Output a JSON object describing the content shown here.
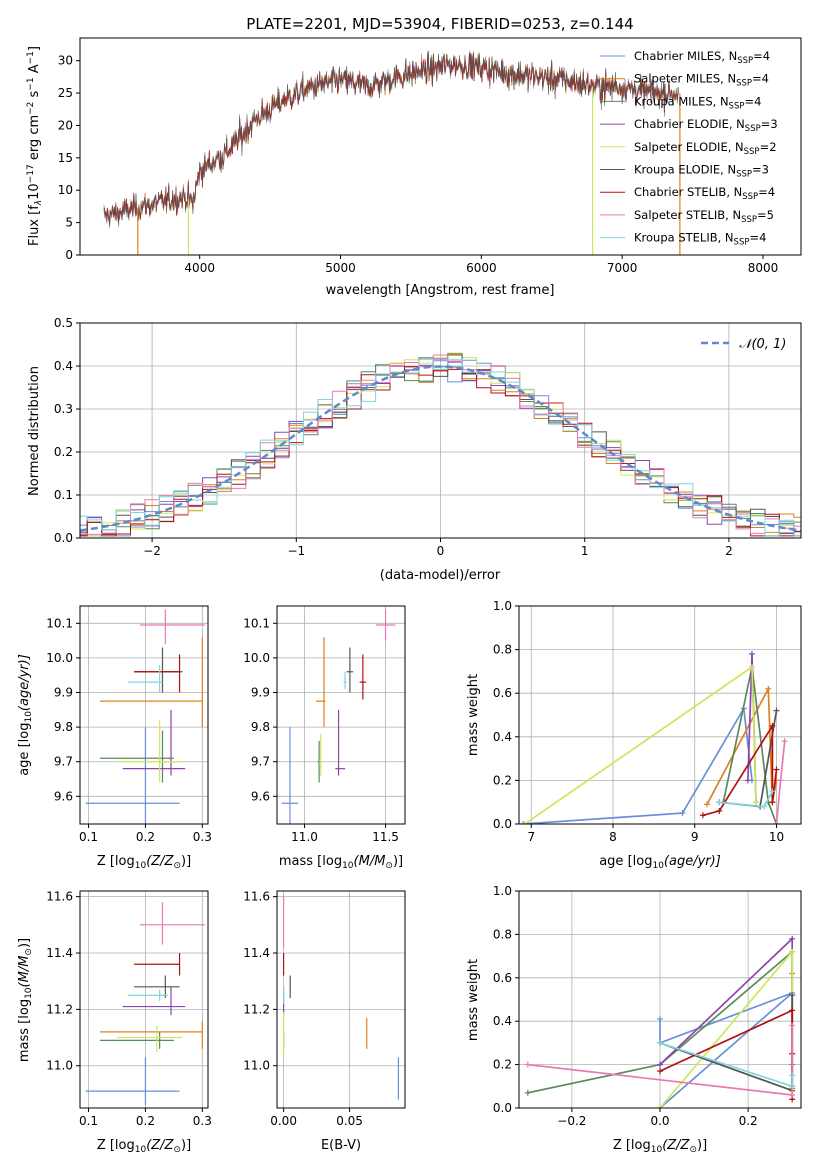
{
  "colors": [
    "#6a8fd8",
    "#e0801e",
    "#5a8a5a",
    "#8e44ad",
    "#cde65c",
    "#555555",
    "#b01010",
    "#e87ab3",
    "#7fd6df"
  ],
  "chart_data": [
    {
      "id": "spectrum",
      "type": "line",
      "title": "PLATE=2201, MJD=53904, FIBERID=0253, z=0.144",
      "xlabel": "wavelength [Angstrom, rest frame]",
      "ylabel": "Flux [f",
      "ylabel_sub": "λ",
      "ylabel_rest": "10",
      "ylabel_exp": "−17",
      "ylabel_units": " erg cm",
      "xlim": [
        3150,
        8270
      ],
      "ylim": [
        0,
        33.5
      ],
      "xticks": [
        4000,
        5000,
        6000,
        7000,
        8000
      ],
      "yticks": [
        0,
        5,
        10,
        15,
        20,
        25,
        30
      ],
      "legend_loc": "upper right",
      "series": [
        {
          "name": "Chabrier MILES, N",
          "sub": "SSP",
          "suffix": "=4"
        },
        {
          "name": "Salpeter MILES, N",
          "sub": "SSP",
          "suffix": "=4"
        },
        {
          "name": "Kroupa MILES, N",
          "sub": "SSP",
          "suffix": "=4"
        },
        {
          "name": "Chabrier ELODIE, N",
          "sub": "SSP",
          "suffix": "=3"
        },
        {
          "name": "Salpeter ELODIE, N",
          "sub": "SSP",
          "suffix": "=2"
        },
        {
          "name": "Kroupa ELODIE, N",
          "sub": "SSP",
          "suffix": "=3"
        },
        {
          "name": "Chabrier STELIB, N",
          "sub": "SSP",
          "suffix": "=4"
        },
        {
          "name": "Salpeter STELIB, N",
          "sub": "SSP",
          "suffix": "=5"
        },
        {
          "name": "Kroupa STELIB, N",
          "sub": "SSP",
          "suffix": "=4"
        }
      ],
      "continuum": [
        [
          3320,
          6
        ],
        [
          3500,
          7
        ],
        [
          3700,
          8
        ],
        [
          3900,
          9
        ],
        [
          3950,
          8
        ],
        [
          4000,
          13
        ],
        [
          4200,
          16
        ],
        [
          4400,
          21
        ],
        [
          4600,
          24
        ],
        [
          4800,
          26
        ],
        [
          5000,
          27
        ],
        [
          5200,
          26
        ],
        [
          5400,
          27.5
        ],
        [
          5600,
          28.5
        ],
        [
          5800,
          29.5
        ],
        [
          6000,
          29
        ],
        [
          6200,
          28
        ],
        [
          6400,
          27.5
        ],
        [
          6600,
          27
        ],
        [
          6800,
          26
        ],
        [
          7000,
          26
        ],
        [
          7200,
          25
        ],
        [
          7400,
          25
        ]
      ],
      "cutoffs": [
        [
          3560,
          "#e0801e"
        ],
        [
          3920,
          "#cde65c"
        ],
        [
          6790,
          "#cde65c"
        ],
        [
          7410,
          "#e0801e"
        ]
      ]
    },
    {
      "id": "residuals",
      "type": "histogram",
      "xlabel": "(data-model)/error",
      "ylabel": "Normed distribution",
      "xlim": [
        -2.5,
        2.5
      ],
      "ylim": [
        0,
        0.5
      ],
      "xticks": [
        -2,
        -1,
        0,
        1,
        2
      ],
      "yticks": [
        0.0,
        0.1,
        0.2,
        0.3,
        0.4,
        0.5
      ],
      "legend": "𝒩(0, 1)",
      "legend_loc": "upper right",
      "bin_width": 0.1
    },
    {
      "id": "age-vs-Z",
      "type": "errorbar",
      "xlabel": "Z [log",
      "xlabel_sub": "10",
      "xlabel_rest": "(Z/Z",
      "ylabel": "age  [log",
      "ylabel_sub": "10",
      "ylabel_rest": "(age/yr)]",
      "xlim": [
        0.085,
        0.31
      ],
      "ylim": [
        9.52,
        10.15
      ],
      "xticks": [
        0.1,
        0.2,
        0.3
      ],
      "yticks": [
        9.6,
        9.7,
        9.8,
        9.9,
        10.0,
        10.1
      ],
      "points": [
        {
          "x": 0.2,
          "y": 9.58,
          "xerr": [
            0.095,
            0.26
          ],
          "yerr": [
            9.52,
            9.8
          ]
        },
        {
          "x": 0.3,
          "y": 9.875,
          "xerr": [
            0.12,
            0.3
          ],
          "yerr": [
            9.8,
            10.06
          ]
        },
        {
          "x": 0.23,
          "y": 9.71,
          "xerr": [
            0.12,
            0.25
          ],
          "yerr": [
            9.64,
            9.79
          ]
        },
        {
          "x": 0.245,
          "y": 9.68,
          "xerr": [
            0.16,
            0.27
          ],
          "yerr": [
            9.66,
            9.85
          ]
        },
        {
          "x": 0.225,
          "y": 9.7,
          "xerr": [
            0.15,
            0.265
          ],
          "yerr": [
            9.64,
            9.82
          ]
        },
        {
          "x": 0.23,
          "y": 9.96,
          "xerr": [
            0.18,
            0.265
          ],
          "yerr": [
            9.9,
            10.03
          ]
        },
        {
          "x": 0.26,
          "y": 9.96,
          "xerr": [
            0.18,
            0.26
          ],
          "yerr": [
            9.9,
            10.01
          ]
        },
        {
          "x": 0.235,
          "y": 10.095,
          "xerr": [
            0.19,
            0.305
          ],
          "yerr": [
            10.04,
            10.14
          ]
        },
        {
          "x": 0.225,
          "y": 9.93,
          "xerr": [
            0.17,
            0.23
          ],
          "yerr": [
            9.9,
            9.98
          ]
        }
      ]
    },
    {
      "id": "age-vs-mass",
      "type": "errorbar",
      "xlabel": "mass [log",
      "xlabel_sub": "10",
      "xlabel_rest": "(M/M",
      "xlim": [
        10.83,
        11.62
      ],
      "ylim": [
        9.52,
        10.15
      ],
      "xticks": [
        11.0,
        11.5
      ],
      "yticks": [
        9.6,
        9.7,
        9.8,
        9.9,
        10.0,
        10.1
      ],
      "points": [
        {
          "x": 10.91,
          "y": 9.58,
          "xerr": [
            10.86,
            10.96
          ],
          "yerr": [
            9.52,
            9.8
          ]
        },
        {
          "x": 11.12,
          "y": 9.875,
          "xerr": [
            11.07,
            11.13
          ],
          "yerr": [
            9.8,
            10.06
          ]
        },
        {
          "x": 11.09,
          "y": 9.7,
          "xerr": [
            11.08,
            11.1
          ],
          "yerr": [
            9.64,
            9.76
          ]
        },
        {
          "x": 11.21,
          "y": 9.68,
          "xerr": [
            11.19,
            11.25
          ],
          "yerr": [
            9.66,
            9.85
          ]
        },
        {
          "x": 11.1,
          "y": 9.7,
          "xerr": [
            11.09,
            11.11
          ],
          "yerr": [
            9.66,
            9.78
          ]
        },
        {
          "x": 11.28,
          "y": 9.96,
          "xerr": [
            11.26,
            11.3
          ],
          "yerr": [
            9.9,
            10.03
          ]
        },
        {
          "x": 11.36,
          "y": 9.93,
          "xerr": [
            11.34,
            11.38
          ],
          "yerr": [
            9.88,
            10.01
          ]
        },
        {
          "x": 11.5,
          "y": 10.095,
          "xerr": [
            11.44,
            11.56
          ],
          "yerr": [
            10.05,
            10.14
          ]
        },
        {
          "x": 11.25,
          "y": 9.93,
          "xerr": [
            11.24,
            11.26
          ],
          "yerr": [
            9.91,
            9.96
          ]
        }
      ]
    },
    {
      "id": "weight-vs-age",
      "type": "line",
      "xlabel": "age  [log",
      "xlabel_sub": "10",
      "xlabel_rest": "(age/yr)]",
      "ylabel": "mass weight",
      "xlim": [
        6.85,
        10.3
      ],
      "ylim": [
        0,
        1.0
      ],
      "xticks": [
        7,
        8,
        9,
        10
      ],
      "yticks": [
        0.0,
        0.2,
        0.4,
        0.6,
        0.8,
        1.0
      ],
      "series": [
        {
          "x": [
            6.9,
            8.85,
            9.6,
            9.7
          ],
          "y": [
            0.0,
            0.05,
            0.53,
            0.2
          ]
        },
        {
          "x": [
            9.15,
            9.9,
            9.95,
            10.0
          ],
          "y": [
            0.09,
            0.62,
            0.1,
            0.2
          ]
        },
        {
          "x": [
            9.35,
            9.7,
            9.9,
            10.0
          ],
          "y": [
            0.1,
            0.72,
            0.1,
            0.0
          ]
        },
        {
          "x": [
            9.65,
            9.7,
            9.75
          ],
          "y": [
            0.2,
            0.78,
            0.1
          ]
        },
        {
          "x": [
            6.92,
            9.7,
            9.75
          ],
          "y": [
            0.0,
            0.72,
            0.1
          ]
        },
        {
          "x": [
            9.3,
            9.8,
            10.0
          ],
          "y": [
            0.1,
            0.08,
            0.52
          ]
        },
        {
          "x": [
            9.1,
            9.3,
            9.95,
            9.95,
            10.0
          ],
          "y": [
            0.04,
            0.06,
            0.45,
            0.1,
            0.25
          ]
        },
        {
          "x": [
            10.0,
            10.05,
            10.1
          ],
          "y": [
            0.0,
            0.2,
            0.38
          ]
        },
        {
          "x": [
            9.3,
            9.85,
            9.95
          ],
          "y": [
            0.1,
            0.08,
            0.15
          ]
        }
      ]
    },
    {
      "id": "mass-vs-Z",
      "type": "errorbar",
      "xlabel": "Z [log",
      "xlabel_sub": "10",
      "xlabel_rest": "(Z/Z",
      "ylabel": "mass [log",
      "ylabel_sub": "10",
      "ylabel_rest": "(M/M",
      "xlim": [
        0.085,
        0.31
      ],
      "ylim": [
        10.85,
        11.62
      ],
      "xticks": [
        0.1,
        0.2,
        0.3
      ],
      "yticks": [
        11.0,
        11.2,
        11.4,
        11.6
      ],
      "points": [
        {
          "x": 0.2,
          "y": 10.91,
          "xerr": [
            0.095,
            0.26
          ],
          "yerr": [
            10.86,
            11.03
          ]
        },
        {
          "x": 0.3,
          "y": 11.12,
          "xerr": [
            0.12,
            0.3
          ],
          "yerr": [
            11.06,
            11.16
          ]
        },
        {
          "x": 0.225,
          "y": 11.09,
          "xerr": [
            0.12,
            0.25
          ],
          "yerr": [
            11.06,
            11.12
          ]
        },
        {
          "x": 0.245,
          "y": 11.21,
          "xerr": [
            0.16,
            0.27
          ],
          "yerr": [
            11.18,
            11.28
          ]
        },
        {
          "x": 0.22,
          "y": 11.1,
          "xerr": [
            0.15,
            0.265
          ],
          "yerr": [
            11.05,
            11.14
          ]
        },
        {
          "x": 0.235,
          "y": 11.28,
          "xerr": [
            0.18,
            0.26
          ],
          "yerr": [
            11.24,
            11.32
          ]
        },
        {
          "x": 0.26,
          "y": 11.36,
          "xerr": [
            0.18,
            0.26
          ],
          "yerr": [
            11.32,
            11.4
          ]
        },
        {
          "x": 0.23,
          "y": 11.5,
          "xerr": [
            0.19,
            0.305
          ],
          "yerr": [
            11.43,
            11.58
          ]
        },
        {
          "x": 0.225,
          "y": 11.25,
          "xerr": [
            0.17,
            0.24
          ],
          "yerr": [
            11.23,
            11.27
          ]
        }
      ]
    },
    {
      "id": "mass-vs-EBV",
      "type": "errorbar",
      "xlabel": "E(B-V)",
      "xlim": [
        -0.005,
        0.092
      ],
      "ylim": [
        10.85,
        11.62
      ],
      "xticks": [
        0.0,
        0.05
      ],
      "yticks": [
        11.0,
        11.2,
        11.4,
        11.6
      ],
      "points": [
        {
          "x": 0.087,
          "y": 10.95,
          "xerr": [
            0.087,
            0.087
          ],
          "yerr": [
            10.88,
            11.03
          ]
        },
        {
          "x": 0.063,
          "y": 11.12,
          "xerr": [
            0.063,
            0.063
          ],
          "yerr": [
            11.06,
            11.17
          ]
        },
        {
          "x": 0.0,
          "y": 11.09,
          "xerr": [
            0.0,
            0.0
          ],
          "yerr": [
            11.06,
            11.12
          ]
        },
        {
          "x": 0.0,
          "y": 11.21,
          "xerr": [
            0.0,
            0.0
          ],
          "yerr": [
            11.18,
            11.28
          ]
        },
        {
          "x": 0.0,
          "y": 11.1,
          "xerr": [
            0.0,
            0.0
          ],
          "yerr": [
            11.03,
            11.19
          ]
        },
        {
          "x": 0.005,
          "y": 11.28,
          "xerr": [
            0.005,
            0.005
          ],
          "yerr": [
            11.24,
            11.32
          ]
        },
        {
          "x": 0.0,
          "y": 11.36,
          "xerr": [
            0.0,
            0.0
          ],
          "yerr": [
            11.32,
            11.4
          ]
        },
        {
          "x": 0.0,
          "y": 11.5,
          "xerr": [
            0.0,
            0.0
          ],
          "yerr": [
            11.42,
            11.6
          ]
        },
        {
          "x": 0.0,
          "y": 11.25,
          "xerr": [
            0.0,
            0.0
          ],
          "yerr": [
            11.22,
            11.28
          ]
        }
      ]
    },
    {
      "id": "weight-vs-Z",
      "type": "line",
      "xlabel": "Z [log",
      "xlabel_sub": "10",
      "xlabel_rest": "(Z/Z",
      "ylabel": "mass weight",
      "xlim": [
        -0.32,
        0.32
      ],
      "ylim": [
        0,
        1.0
      ],
      "xticks": [
        -0.2,
        0.0,
        0.2
      ],
      "yticks": [
        0.0,
        0.2,
        0.4,
        0.6,
        0.8,
        1.0
      ],
      "series": [
        {
          "x": [
            0.0,
            0.3,
            0.0,
            0.0
          ],
          "y": [
            0.0,
            0.53,
            0.3,
            0.41
          ]
        },
        {
          "x": [
            0.3,
            0.3,
            0.3
          ],
          "y": [
            0.09,
            0.62,
            0.2
          ]
        },
        {
          "x": [
            -0.3,
            0.0,
            0.3,
            0.3
          ],
          "y": [
            0.07,
            0.2,
            0.72,
            0.1
          ]
        },
        {
          "x": [
            0.0,
            0.3,
            0.3
          ],
          "y": [
            0.2,
            0.78,
            0.1
          ]
        },
        {
          "x": [
            0.0,
            0.3,
            0.3
          ],
          "y": [
            0.0,
            0.72,
            0.1
          ]
        },
        {
          "x": [
            0.0,
            0.3,
            0.3
          ],
          "y": [
            0.3,
            0.08,
            0.52
          ]
        },
        {
          "x": [
            0.0,
            0.3,
            0.3,
            0.3
          ],
          "y": [
            0.17,
            0.45,
            0.04,
            0.25
          ]
        },
        {
          "x": [
            -0.3,
            0.3,
            0.3
          ],
          "y": [
            0.2,
            0.06,
            0.38
          ]
        },
        {
          "x": [
            0.0,
            0.3,
            0.3
          ],
          "y": [
            0.3,
            0.1,
            0.15
          ]
        }
      ]
    }
  ]
}
